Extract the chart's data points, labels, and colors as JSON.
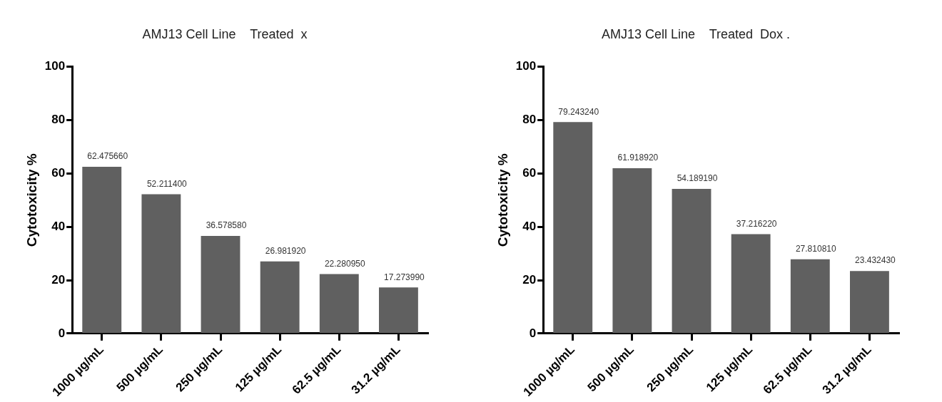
{
  "chart_data": [
    {
      "type": "bar",
      "title": "AMJ13 Cell Line    Treated  x",
      "ylabel": "Cytotoxicity %",
      "categories": [
        "1000 µg/mL",
        "500 µg/mL",
        "250 µg/mL",
        "125 µg/mL",
        "62.5 µg/mL",
        "31.2 µg/mL"
      ],
      "values": [
        62.47566,
        52.2114,
        36.57858,
        26.98192,
        22.28095,
        17.27399
      ],
      "value_labels": [
        "62.475660",
        "52.211400",
        "36.578580",
        "26.981920",
        "22.280950",
        "17.273990"
      ],
      "color": "#606060",
      "ylim": [
        0,
        100
      ],
      "yticks": [
        0,
        20,
        40,
        60,
        80,
        100
      ],
      "grid": false,
      "legend": false
    },
    {
      "type": "bar",
      "title": "AMJ13 Cell Line    Treated  Dox .",
      "ylabel": "Cytotoxicity %",
      "categories": [
        "1000 µg/mL",
        "500 µg/mL",
        "250 µg/mL",
        "125 µg/mL",
        "62.5 µg/mL",
        "31.2 µg/mL"
      ],
      "values": [
        79.24324,
        61.91892,
        54.18919,
        37.21622,
        27.81081,
        23.43243
      ],
      "value_labels": [
        "79.243240",
        "61.918920",
        "54.189190",
        "37.216220",
        "27.810810",
        "23.432430"
      ],
      "color": "#606060",
      "ylim": [
        0,
        100
      ],
      "yticks": [
        0,
        20,
        40,
        60,
        80,
        100
      ],
      "grid": false,
      "legend": false
    }
  ]
}
